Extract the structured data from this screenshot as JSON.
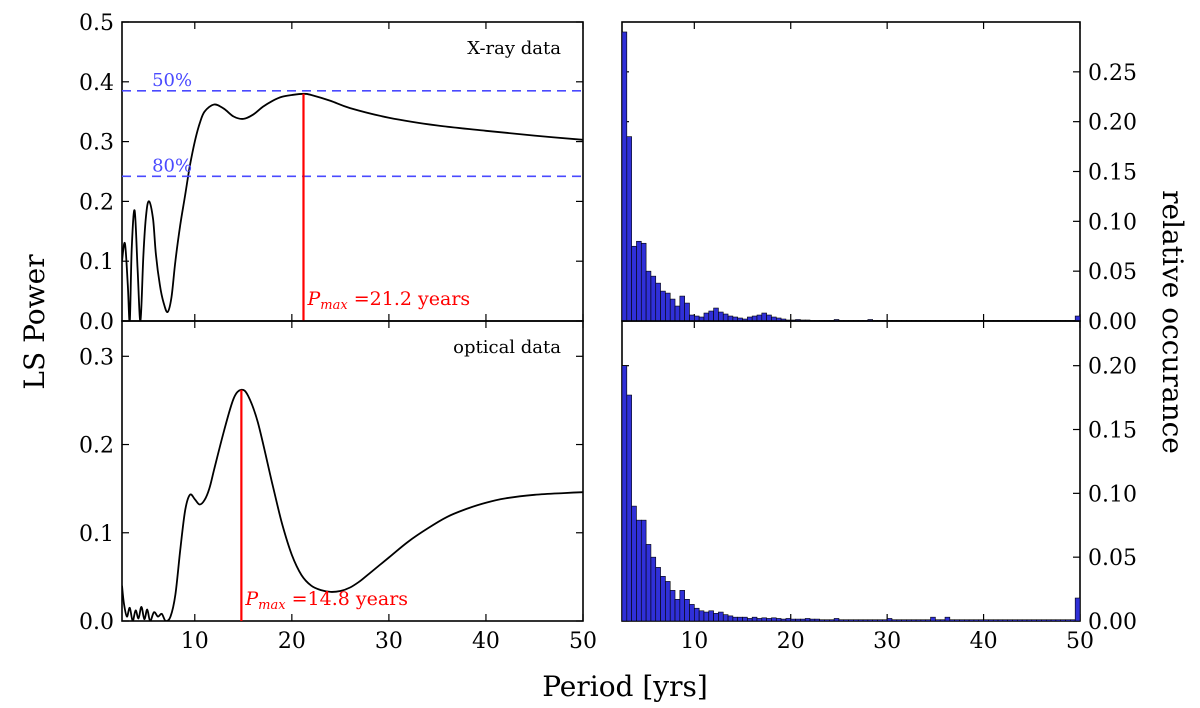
{
  "figure": {
    "xlabel": "Period [yrs]",
    "ylabel_left": "LS Power",
    "ylabel_right": "relative occurance"
  },
  "chart_data": [
    {
      "type": "line",
      "id": "xray-periodogram",
      "panel_label": "X-ray data",
      "xlim": [
        2.5,
        50
      ],
      "ylim": [
        0,
        0.5
      ],
      "xticks": [
        10,
        20,
        30,
        40,
        50
      ],
      "yticks": [
        "0.0",
        "0.1",
        "0.2",
        "0.3",
        "0.4",
        "0.5"
      ],
      "x": [
        2.5,
        2.8,
        3.1,
        3.3,
        3.5,
        3.8,
        4.1,
        4.4,
        4.7,
        5.0,
        5.3,
        5.7,
        6.0,
        6.4,
        6.8,
        7.2,
        7.6,
        8.0,
        8.5,
        9.0,
        9.5,
        10.0,
        10.5,
        11.0,
        12.0,
        13.0,
        14.0,
        15.0,
        16.0,
        17.0,
        18.0,
        19.0,
        20.0,
        21.2,
        22.0,
        24.0,
        26.0,
        30.0,
        35.0,
        40.0,
        45.0,
        50.0
      ],
      "y": [
        0.1,
        0.13,
        0.06,
        0.0,
        0.12,
        0.185,
        0.09,
        0.0,
        0.11,
        0.18,
        0.2,
        0.17,
        0.11,
        0.06,
        0.03,
        0.015,
        0.04,
        0.1,
        0.16,
        0.21,
        0.26,
        0.3,
        0.33,
        0.35,
        0.362,
        0.355,
        0.342,
        0.338,
        0.345,
        0.358,
        0.368,
        0.375,
        0.378,
        0.38,
        0.378,
        0.368,
        0.356,
        0.34,
        0.327,
        0.318,
        0.31,
        0.303
      ],
      "thresholds": [
        {
          "label": "50%",
          "y": 0.385
        },
        {
          "label": "80%",
          "y": 0.242
        }
      ],
      "peak": {
        "x": 21.2,
        "y": 0.38,
        "label": "P_max =21.2 years",
        "sym": "P",
        "sub": "max",
        "text": " =21.2 years"
      }
    },
    {
      "type": "line",
      "id": "optical-periodogram",
      "panel_label": "optical data",
      "xlim": [
        2.5,
        50
      ],
      "ylim": [
        0,
        0.34
      ],
      "xticks": [
        10,
        20,
        30,
        40,
        50
      ],
      "yticks": [
        "0.0",
        "0.1",
        "0.2",
        "0.3"
      ],
      "x": [
        2.5,
        2.7,
        3.0,
        3.3,
        3.6,
        3.9,
        4.2,
        4.5,
        4.8,
        5.1,
        5.4,
        5.8,
        6.2,
        6.6,
        7.0,
        7.5,
        8.0,
        8.5,
        9.0,
        9.5,
        10.0,
        10.5,
        11.0,
        11.5,
        12.0,
        13.0,
        14.0,
        14.8,
        15.5,
        16.5,
        18.0,
        19.0,
        20.0,
        21.0,
        22.0,
        23.0,
        24.0,
        25.0,
        26.0,
        27.0,
        28.0,
        30.0,
        32.0,
        34.0,
        36.0,
        38.0,
        40.0,
        42.0,
        45.0,
        48.0,
        50.0
      ],
      "y": [
        0.04,
        0.02,
        0.005,
        0.015,
        0.0,
        0.012,
        0.003,
        0.016,
        0.002,
        0.013,
        0.0,
        0.01,
        0.005,
        0.008,
        0.0,
        0.005,
        0.03,
        0.08,
        0.125,
        0.143,
        0.138,
        0.132,
        0.137,
        0.15,
        0.172,
        0.215,
        0.252,
        0.262,
        0.255,
        0.225,
        0.155,
        0.11,
        0.075,
        0.052,
        0.04,
        0.035,
        0.033,
        0.034,
        0.038,
        0.045,
        0.054,
        0.072,
        0.09,
        0.105,
        0.118,
        0.127,
        0.134,
        0.139,
        0.143,
        0.145,
        0.146
      ],
      "peak": {
        "x": 14.8,
        "y": 0.262,
        "label": "P_max =14.8 years",
        "sym": "P",
        "sub": "max",
        "text": " =14.8 years"
      }
    },
    {
      "type": "bar",
      "id": "xray-histogram",
      "xlim": [
        2.5,
        50
      ],
      "ylim": [
        0,
        0.3
      ],
      "xticks": [
        10,
        20,
        30,
        40,
        50
      ],
      "yticks": [
        "0.00",
        "0.05",
        "0.10",
        "0.15",
        "0.20",
        "0.25"
      ],
      "bin_start": 2.5,
      "bin_width": 0.5,
      "values": [
        0.29,
        0.185,
        0.075,
        0.08,
        0.078,
        0.05,
        0.045,
        0.038,
        0.03,
        0.028,
        0.022,
        0.015,
        0.025,
        0.018,
        0.006,
        0.005,
        0.004,
        0.008,
        0.01,
        0.013,
        0.009,
        0.007,
        0.005,
        0.004,
        0.003,
        0.002,
        0.004,
        0.005,
        0.006,
        0.008,
        0.006,
        0.004,
        0.003,
        0.002,
        0.001,
        0.001,
        0.0015,
        0.001,
        0.001,
        0.0005,
        0.0005,
        0.0005,
        0.0005,
        0.0005,
        0.0015,
        0.0005,
        0.0005,
        0.0005,
        0.0005,
        0.0005,
        0.0005,
        0.0015,
        0.0005,
        0.0005,
        0.0005,
        0.0005,
        0.0005,
        0.0005,
        0.0005,
        0.0005,
        0.0005,
        0.0005,
        0.0005,
        0.0005,
        0.0005,
        0.0005,
        0.0005,
        0.0005,
        0.0005,
        0.0005,
        0.0005,
        0.0005,
        0.0005,
        0.0005,
        0.0005,
        0.0005,
        0.0005,
        0.0005,
        0.0005,
        0.0005,
        0.0005,
        0.0005,
        0.0005,
        0.0005,
        0.0005,
        0.0005,
        0.0005,
        0.0005,
        0.0005,
        0.0005,
        0.0005,
        0.0005,
        0.0005,
        0.0005,
        0.005
      ]
    },
    {
      "type": "bar",
      "id": "optical-histogram",
      "xlim": [
        2.5,
        50
      ],
      "ylim": [
        0,
        0.235
      ],
      "xticks": [
        10,
        20,
        30,
        40,
        50
      ],
      "yticks": [
        "0.00",
        "0.05",
        "0.10",
        "0.15",
        "0.20"
      ],
      "bin_start": 2.5,
      "bin_width": 0.5,
      "values": [
        0.2,
        0.177,
        0.09,
        0.079,
        0.079,
        0.06,
        0.05,
        0.042,
        0.035,
        0.031,
        0.024,
        0.017,
        0.024,
        0.017,
        0.013,
        0.01,
        0.008,
        0.007,
        0.008,
        0.006,
        0.007,
        0.005,
        0.004,
        0.003,
        0.003,
        0.003,
        0.002,
        0.003,
        0.002,
        0.0025,
        0.002,
        0.0025,
        0.002,
        0.0015,
        0.002,
        0.0015,
        0.0015,
        0.0015,
        0.002,
        0.0015,
        0.0015,
        0.001,
        0.001,
        0.001,
        0.002,
        0.001,
        0.001,
        0.001,
        0.001,
        0.001,
        0.001,
        0.001,
        0.001,
        0.001,
        0.001,
        0.002,
        0.001,
        0.001,
        0.001,
        0.001,
        0.001,
        0.001,
        0.001,
        0.001,
        0.003,
        0.001,
        0.001,
        0.003,
        0.001,
        0.001,
        0.001,
        0.001,
        0.001,
        0.001,
        0.001,
        0.001,
        0.001,
        0.001,
        0.001,
        0.001,
        0.001,
        0.001,
        0.001,
        0.001,
        0.001,
        0.001,
        0.001,
        0.001,
        0.001,
        0.001,
        0.001,
        0.001,
        0.001,
        0.001,
        0.018
      ]
    }
  ]
}
